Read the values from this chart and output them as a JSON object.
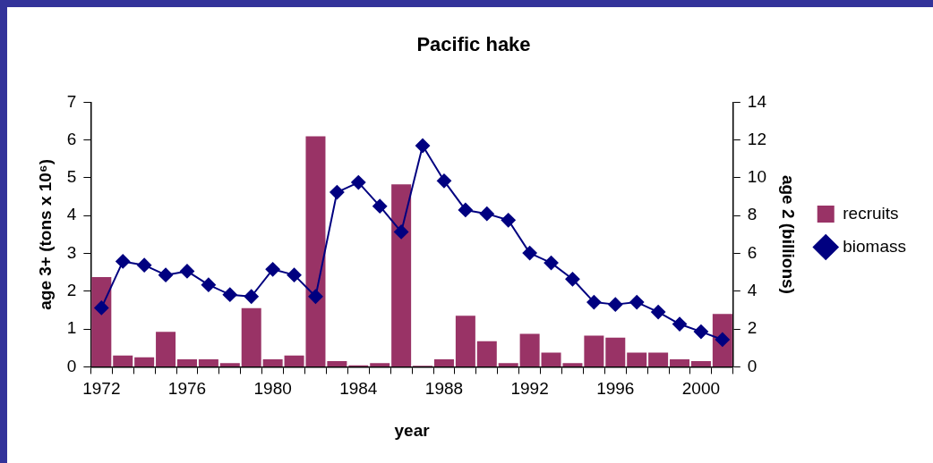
{
  "chart_data": {
    "type": "bar",
    "title": "Pacific hake",
    "xlabel": "year",
    "ylabel": "age 3+ (tons x 10⁶)",
    "y2label": "age 2 (billions)",
    "categories": [
      "1972",
      null,
      null,
      null,
      "1976",
      null,
      null,
      null,
      "1980",
      null,
      null,
      null,
      "1984",
      null,
      null,
      null,
      "1988",
      null,
      null,
      null,
      "1992",
      null,
      null,
      null,
      "1996",
      null,
      null,
      null,
      "2000",
      null
    ],
    "series": [
      {
        "name": "recruits",
        "axis": "y2",
        "color": "#993366",
        "values": [
          4.75,
          0.6,
          0.5,
          1.85,
          0.4,
          0.4,
          0.2,
          3.1,
          0.4,
          0.6,
          12.2,
          0.3,
          0.08,
          0.2,
          9.65,
          0.06,
          0.4,
          2.7,
          1.35,
          0.2,
          1.75,
          0.75,
          0.2,
          1.65,
          1.55,
          0.75,
          0.75,
          0.4,
          0.3,
          2.8
        ]
      },
      {
        "name": "biomass",
        "type": "line",
        "color": "#000080",
        "marker": "diamond",
        "values": [
          1.56,
          2.79,
          2.69,
          2.43,
          2.53,
          2.17,
          1.91,
          1.86,
          2.58,
          2.43,
          1.86,
          4.62,
          4.88,
          4.25,
          3.57,
          5.85,
          4.92,
          4.15,
          4.05,
          3.88,
          3.01,
          2.75,
          2.32,
          1.71,
          1.65,
          1.71,
          1.45,
          1.13,
          0.93,
          0.72
        ]
      }
    ],
    "ylim": [
      0,
      7
    ],
    "yticks": [
      0,
      1,
      2,
      3,
      4,
      5,
      6,
      7
    ],
    "y2lim": [
      0,
      14
    ],
    "y2ticks": [
      0,
      2,
      4,
      6,
      8,
      10,
      12,
      14
    ],
    "grid": false,
    "legend": "right"
  }
}
